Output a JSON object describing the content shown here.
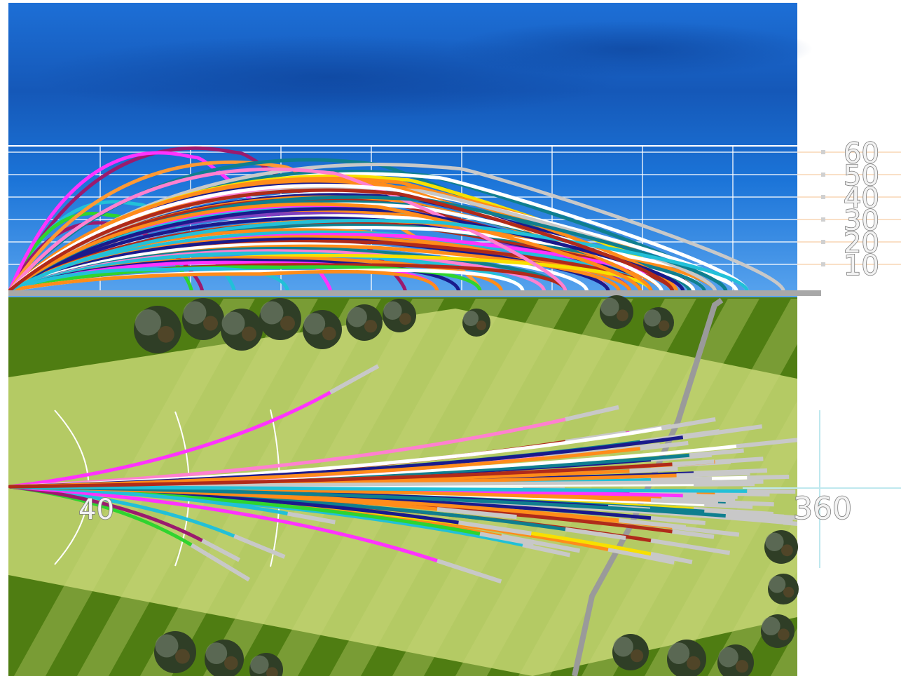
{
  "chart_data": {
    "type": "line",
    "panels": [
      "side-view",
      "top-view"
    ],
    "height_axis": {
      "ticks": [
        "10",
        "20",
        "30",
        "40",
        "50",
        "60"
      ],
      "range": [
        0,
        60
      ]
    },
    "distance_markers": [
      "40",
      "360"
    ],
    "colors": {
      "sky": "#1565c8",
      "grass_dark": "#4f7d12",
      "fairway_light": "#b4ca64",
      "trees": "#2f3e26"
    },
    "trajectories": [
      {
        "color": "#9b1a6e",
        "peak": 60,
        "land": 185,
        "bend": 6
      },
      {
        "color": "#22c0d8",
        "peak": 37,
        "land": 105,
        "bend": 22
      },
      {
        "color": "#2fd42f",
        "peak": 32,
        "land": 85,
        "bend": 26
      },
      {
        "color": "#9b1a6e",
        "peak": 28,
        "land": 90,
        "bend": 24
      },
      {
        "color": "#ff33ff",
        "peak": 58,
        "land": 150,
        "bend": -42
      },
      {
        "color": "#ff9933",
        "peak": 54,
        "land": 220,
        "bend": -8
      },
      {
        "color": "#0f7f8f",
        "peak": 55,
        "land": 295,
        "bend": -20
      },
      {
        "color": "#0f7f8f",
        "peak": 50,
        "land": 335,
        "bend": 7
      },
      {
        "color": "#c8c8c8",
        "peak": 53,
        "land": 362,
        "bend": 16
      },
      {
        "color": "#ffffff",
        "peak": 49,
        "land": 345,
        "bend": -4
      },
      {
        "color": "#f7e000",
        "peak": 48,
        "land": 320,
        "bend": 10
      },
      {
        "color": "#1a1a8c",
        "peak": 45,
        "land": 300,
        "bend": -12
      },
      {
        "color": "#ff8c1a",
        "peak": 44,
        "land": 330,
        "bend": 3
      },
      {
        "color": "#ff80d0",
        "peak": 42,
        "land": 280,
        "bend": -16
      },
      {
        "color": "#ffffff",
        "peak": 41,
        "land": 340,
        "bend": 12
      },
      {
        "color": "#1a1a8c",
        "peak": 40,
        "land": 320,
        "bend": -6
      },
      {
        "color": "#ff8c1a",
        "peak": 39,
        "land": 310,
        "bend": 18
      },
      {
        "color": "#b02a1a",
        "peak": 38,
        "land": 300,
        "bend": -2
      },
      {
        "color": "#0f7f8f",
        "peak": 37,
        "land": 318,
        "bend": -14
      },
      {
        "color": "#ffffff",
        "peak": 36,
        "land": 325,
        "bend": 8
      },
      {
        "color": "#ff33ff",
        "peak": 35,
        "land": 290,
        "bend": -24
      },
      {
        "color": "#22c0d8",
        "peak": 34,
        "land": 300,
        "bend": -9
      },
      {
        "color": "#ff8c1a",
        "peak": 33,
        "land": 305,
        "bend": 5
      },
      {
        "color": "#7f3fbf",
        "peak": 32,
        "land": 290,
        "bend": 2
      },
      {
        "color": "#ffffff",
        "peak": 31,
        "land": 320,
        "bend": -1
      },
      {
        "color": "#1a1a8c",
        "peak": 30,
        "land": 300,
        "bend": 14
      },
      {
        "color": "#ff8c1a",
        "peak": 29,
        "land": 330,
        "bend": -11
      },
      {
        "color": "#b02a1a",
        "peak": 28,
        "land": 310,
        "bend": 20
      },
      {
        "color": "#0f7f8f",
        "peak": 27,
        "land": 325,
        "bend": 11
      },
      {
        "color": "#ffffff",
        "peak": 26,
        "land": 340,
        "bend": -18
      },
      {
        "color": "#ff8c1a",
        "peak": 25,
        "land": 280,
        "bend": 28
      },
      {
        "color": "#22c0d8",
        "peak": 24,
        "land": 300,
        "bend": -3
      },
      {
        "color": "#ff33ff",
        "peak": 23,
        "land": 315,
        "bend": 4
      },
      {
        "color": "#ff8c1a",
        "peak": 22,
        "land": 290,
        "bend": -7
      },
      {
        "color": "#1a1a8c",
        "peak": 21,
        "land": 280,
        "bend": 9
      },
      {
        "color": "#b02a1a",
        "peak": 20,
        "land": 300,
        "bend": 24
      },
      {
        "color": "#ffffff",
        "peak": 19,
        "land": 270,
        "bend": -15
      },
      {
        "color": "#ff8c1a",
        "peak": 18,
        "land": 285,
        "bend": 15
      },
      {
        "color": "#0f7f8f",
        "peak": 17,
        "land": 260,
        "bend": 19
      },
      {
        "color": "#ff80d0",
        "peak": 16,
        "land": 250,
        "bend": -13
      },
      {
        "color": "#22c0d8",
        "peak": 15,
        "land": 240,
        "bend": 26
      },
      {
        "color": "#f7e000",
        "peak": 14,
        "land": 300,
        "bend": 30
      },
      {
        "color": "#ff8c1a",
        "peak": 13,
        "land": 230,
        "bend": 22
      },
      {
        "color": "#1a1a8c",
        "peak": 12,
        "land": 210,
        "bend": 16
      },
      {
        "color": "#ff33ff",
        "peak": 11,
        "land": 200,
        "bend": 33
      },
      {
        "color": "#b02a1a",
        "peak": 10,
        "land": 260,
        "bend": -20
      },
      {
        "color": "#2fd42f",
        "peak": 9,
        "land": 220,
        "bend": 21
      },
      {
        "color": "#22c0d8",
        "peak": 8,
        "land": 130,
        "bend": 12
      },
      {
        "color": "#ffffff",
        "peak": 7,
        "land": 240,
        "bend": 1
      },
      {
        "color": "#ff8c1a",
        "peak": 6,
        "land": 200,
        "bend": 10
      },
      {
        "color": "#ff8c1a",
        "peak": 47,
        "land": 312,
        "bend": -5
      },
      {
        "color": "#c8c8c8",
        "peak": 43,
        "land": 330,
        "bend": -2
      },
      {
        "color": "#ff8c1a",
        "peak": 46,
        "land": 300,
        "bend": 6
      },
      {
        "color": "#ff80d0",
        "peak": 51,
        "land": 260,
        "bend": -30
      },
      {
        "color": "#ffffff",
        "peak": 44,
        "land": 305,
        "bend": -26
      },
      {
        "color": "#1a1a8c",
        "peak": 34,
        "land": 315,
        "bend": -22
      },
      {
        "color": "#0f7f8f",
        "peak": 39,
        "land": 335,
        "bend": 13
      },
      {
        "color": "#ff8c1a",
        "peak": 36,
        "land": 295,
        "bend": -17
      },
      {
        "color": "#22c0d8",
        "peak": 29,
        "land": 345,
        "bend": 2
      },
      {
        "color": "#b02a1a",
        "peak": 42,
        "land": 310,
        "bend": -10
      }
    ]
  }
}
